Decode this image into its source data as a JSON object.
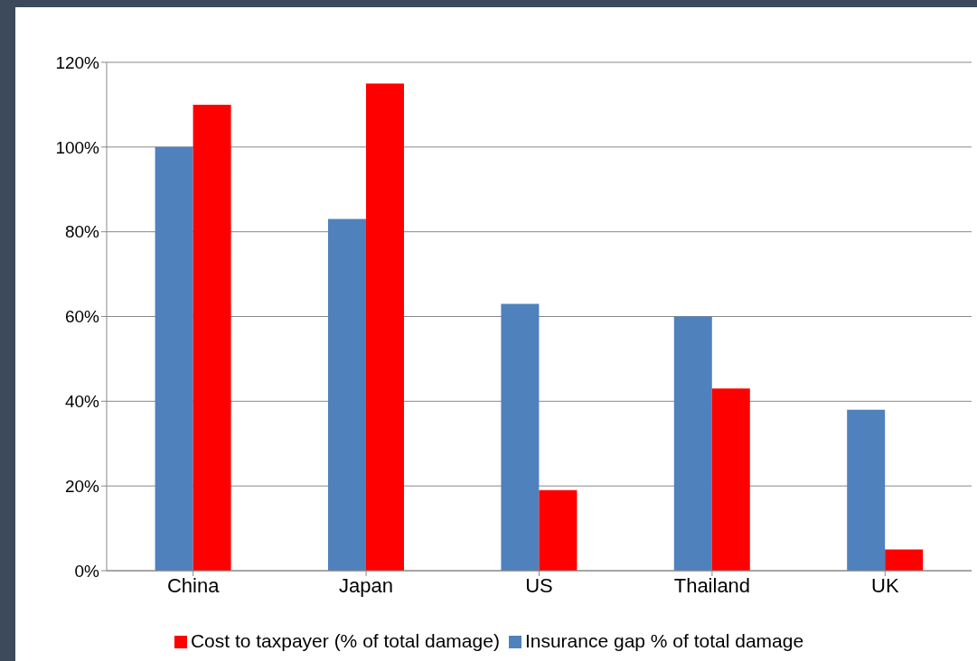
{
  "chart_data": {
    "type": "bar",
    "categories": [
      "China",
      "Japan",
      "US",
      "Thailand",
      "UK"
    ],
    "series": [
      {
        "name": "Insurance gap % of total damage",
        "color": "#4f81bd",
        "values": [
          100,
          83,
          63,
          60,
          38
        ]
      },
      {
        "name": "Cost to taxpayer (% of total damage)",
        "color": "#ff0000",
        "values": [
          110,
          115,
          19,
          43,
          5
        ]
      }
    ],
    "ylim": [
      0,
      120
    ],
    "yticks": [
      {
        "value": 0,
        "label": "0%"
      },
      {
        "value": 20,
        "label": "20%"
      },
      {
        "value": 40,
        "label": "40%"
      },
      {
        "value": 60,
        "label": "60%"
      },
      {
        "value": 80,
        "label": "80%"
      },
      {
        "value": 100,
        "label": "100%"
      },
      {
        "value": 120,
        "label": "120%"
      }
    ],
    "grid": "y",
    "legend": "bottom"
  }
}
